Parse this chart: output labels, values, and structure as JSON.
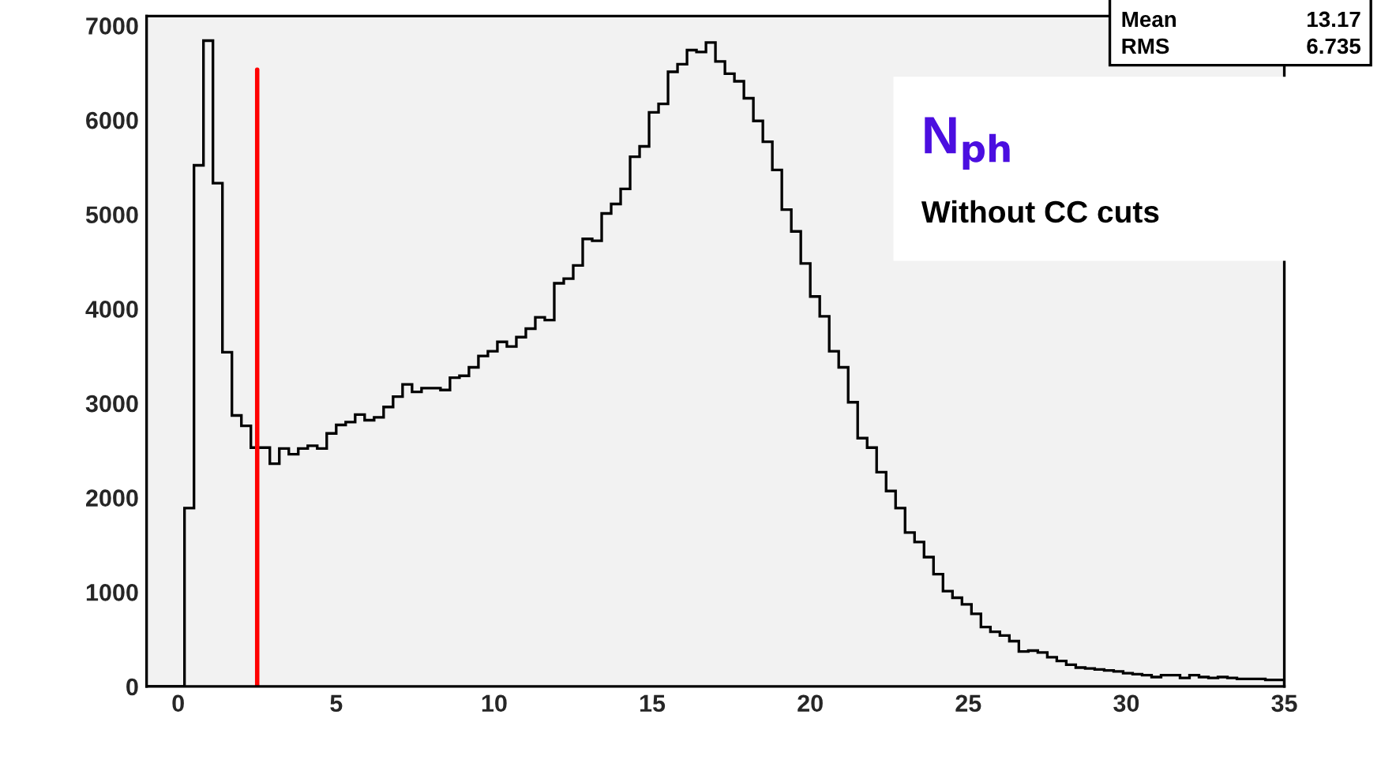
{
  "chart_data": {
    "type": "histogram",
    "bins": [
      -1,
      -0.7,
      -0.4,
      -0.1,
      0.2,
      0.5,
      0.8,
      1.1,
      1.4,
      1.7,
      2,
      2.3,
      2.6,
      2.9,
      3.2,
      3.5,
      3.8,
      4.1,
      4.4,
      4.7,
      5,
      5.3,
      5.6,
      5.9,
      6.2,
      6.5,
      6.8,
      7.1,
      7.4,
      7.7,
      8,
      8.3,
      8.6,
      8.9,
      9.2,
      9.5,
      9.8,
      10.1,
      10.4,
      10.7,
      11,
      11.3,
      11.6,
      11.9,
      12.2,
      12.5,
      12.8,
      13.1,
      13.4,
      13.7,
      14,
      14.3,
      14.6,
      14.9,
      15.2,
      15.5,
      15.8,
      16.1,
      16.4,
      16.7,
      17,
      17.3,
      17.6,
      17.9,
      18.2,
      18.5,
      18.8,
      19.1,
      19.4,
      19.7,
      20,
      20.3,
      20.6,
      20.9,
      21.2,
      21.5,
      21.8,
      22.1,
      22.4,
      22.7,
      23,
      23.3,
      23.6,
      23.9,
      24.2,
      24.5,
      24.8,
      25.1,
      25.4,
      25.7,
      26,
      26.3,
      26.6,
      26.9,
      27.2,
      27.5,
      27.8,
      28.1,
      28.4,
      28.7,
      29,
      29.3,
      29.6,
      29.9,
      30.2,
      30.5,
      30.8,
      31.1,
      31.4,
      31.7,
      32,
      32.3,
      32.6,
      32.9,
      33.2,
      33.5,
      33.8,
      34.1,
      34.4,
      34.7,
      35
    ],
    "values": [
      0,
      0,
      0,
      0,
      1890,
      5520,
      6840,
      5330,
      3540,
      2870,
      2760,
      2530,
      2530,
      2360,
      2520,
      2460,
      2520,
      2550,
      2520,
      2680,
      2770,
      2800,
      2880,
      2820,
      2850,
      2960,
      3070,
      3200,
      3120,
      3160,
      3160,
      3140,
      3270,
      3290,
      3380,
      3500,
      3550,
      3650,
      3600,
      3700,
      3790,
      3910,
      3880,
      4270,
      4320,
      4460,
      4740,
      4720,
      5010,
      5110,
      5270,
      5610,
      5720,
      6080,
      6170,
      6510,
      6590,
      6740,
      6720,
      6820,
      6620,
      6490,
      6410,
      6230,
      5990,
      5770,
      5470,
      5050,
      4820,
      4480,
      4130,
      3920,
      3550,
      3380,
      3010,
      2630,
      2530,
      2270,
      2070,
      1890,
      1630,
      1530,
      1370,
      1190,
      1010,
      940,
      870,
      770,
      630,
      580,
      540,
      480,
      370,
      380,
      360,
      310,
      270,
      230,
      200,
      190,
      180,
      170,
      160,
      140,
      130,
      120,
      100,
      120,
      120,
      90,
      120,
      100,
      90,
      100,
      90,
      80,
      80,
      80,
      70,
      70
    ],
    "color": "#000000",
    "xlim": [
      -1,
      35
    ],
    "xticks": [
      0,
      5,
      10,
      15,
      20,
      25,
      30,
      35
    ],
    "ylim": [
      0,
      7100
    ],
    "yticks": [
      0,
      1000,
      2000,
      3000,
      4000,
      5000,
      6000,
      7000
    ],
    "ref_lines": [
      {
        "axis": "x",
        "value": 2.5,
        "color": "#ff0000"
      }
    ],
    "annotations": [
      "N$_{ph}$",
      "Without CC cuts",
      "Mean",
      "13.17",
      "RMS",
      "6.735"
    ],
    "grid": false
  }
}
